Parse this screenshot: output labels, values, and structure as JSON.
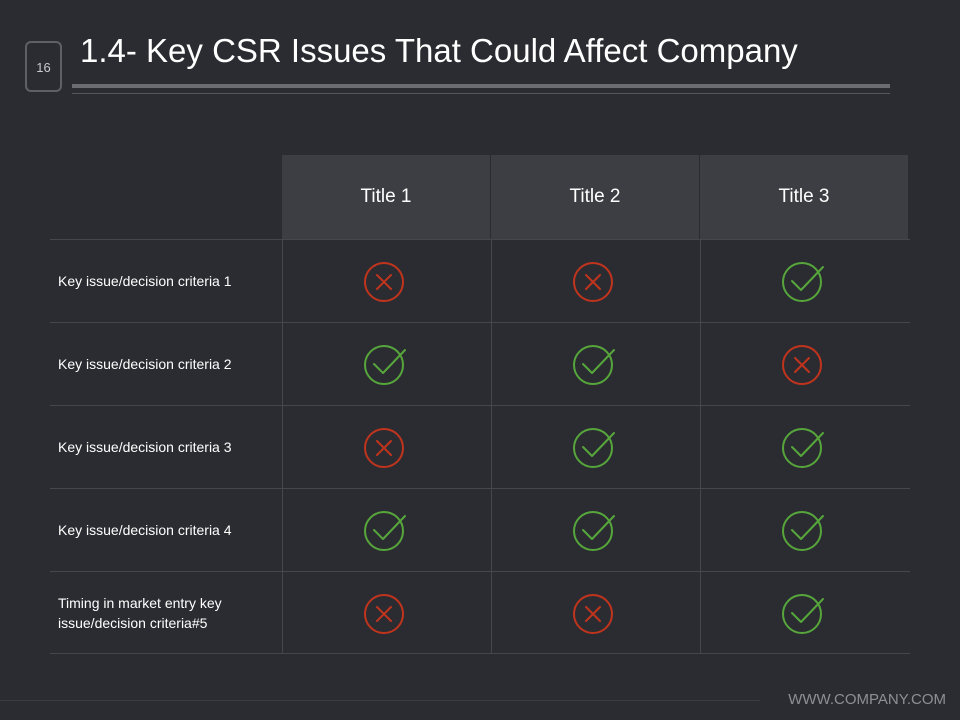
{
  "slide": {
    "number": "16",
    "title": "1.4- Key CSR Issues That Could Affect Company",
    "footer": "WWW.COMPANY.COM"
  },
  "colors": {
    "check": "#56a63b",
    "cross": "#c0341d"
  },
  "table": {
    "columns": [
      "Title 1",
      "Title 2",
      "Title 3"
    ],
    "rows": [
      {
        "label": "Key issue/decision criteria 1",
        "marks": [
          "cross",
          "cross",
          "check"
        ]
      },
      {
        "label": "Key issue/decision criteria 2",
        "marks": [
          "check",
          "check",
          "cross"
        ]
      },
      {
        "label": "Key issue/decision criteria 3",
        "marks": [
          "cross",
          "check",
          "check"
        ]
      },
      {
        "label": "Key issue/decision criteria 4",
        "marks": [
          "check",
          "check",
          "check"
        ]
      },
      {
        "label": "Timing in market entry key issue/decision criteria#5",
        "marks": [
          "cross",
          "cross",
          "check"
        ]
      }
    ]
  }
}
